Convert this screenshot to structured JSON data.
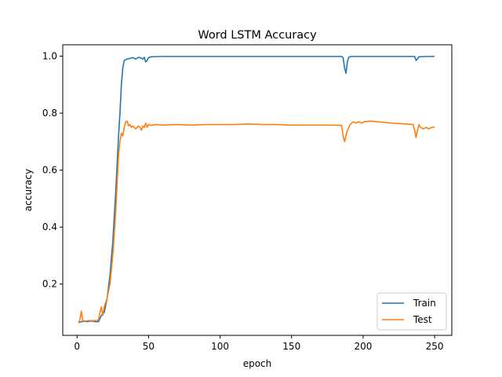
{
  "chart_data": {
    "type": "line",
    "title": "Word LSTM Accuracy",
    "xlabel": "epoch",
    "ylabel": "accuracy",
    "xlim": [
      -10,
      262
    ],
    "ylim": [
      0.02,
      1.04
    ],
    "xticks": [
      0,
      50,
      100,
      150,
      200,
      250
    ],
    "yticks": [
      0.2,
      0.4,
      0.6,
      0.8,
      1.0
    ],
    "xtick_labels": [
      "0",
      "50",
      "100",
      "150",
      "200",
      "250"
    ],
    "ytick_labels": [
      "0.2",
      "0.4",
      "0.6",
      "0.8",
      "1.0"
    ],
    "legend_position": "bottom-right",
    "grid": false,
    "series": [
      {
        "name": "Train",
        "color": "#1f77b4",
        "points": [
          [
            1,
            0.065
          ],
          [
            3,
            0.068
          ],
          [
            5,
            0.07
          ],
          [
            7,
            0.068
          ],
          [
            9,
            0.07
          ],
          [
            11,
            0.07
          ],
          [
            13,
            0.068
          ],
          [
            15,
            0.068
          ],
          [
            17,
            0.09
          ],
          [
            19,
            0.1
          ],
          [
            21,
            0.15
          ],
          [
            23,
            0.23
          ],
          [
            25,
            0.35
          ],
          [
            27,
            0.52
          ],
          [
            29,
            0.72
          ],
          [
            30,
            0.8
          ],
          [
            31,
            0.9
          ],
          [
            32,
            0.96
          ],
          [
            33,
            0.985
          ],
          [
            35,
            0.99
          ],
          [
            37,
            0.992
          ],
          [
            39,
            0.995
          ],
          [
            41,
            0.99
          ],
          [
            43,
            0.996
          ],
          [
            45,
            0.993
          ],
          [
            46,
            0.99
          ],
          [
            47,
            0.996
          ],
          [
            48,
            0.98
          ],
          [
            49,
            0.985
          ],
          [
            50,
            0.995
          ],
          [
            52,
            0.998
          ],
          [
            60,
            0.999
          ],
          [
            100,
            0.999
          ],
          [
            150,
            0.999
          ],
          [
            185,
            0.999
          ],
          [
            186,
            0.995
          ],
          [
            187,
            0.96
          ],
          [
            188,
            0.94
          ],
          [
            189,
            0.98
          ],
          [
            190,
            0.997
          ],
          [
            192,
            0.999
          ],
          [
            230,
            0.999
          ],
          [
            236,
            0.999
          ],
          [
            237,
            0.985
          ],
          [
            238,
            0.99
          ],
          [
            239,
            0.998
          ],
          [
            245,
            0.999
          ],
          [
            250,
            0.999
          ]
        ]
      },
      {
        "name": "Test",
        "color": "#ff7f0e",
        "points": [
          [
            1,
            0.065
          ],
          [
            2,
            0.075
          ],
          [
            3,
            0.105
          ],
          [
            4,
            0.072
          ],
          [
            6,
            0.07
          ],
          [
            8,
            0.072
          ],
          [
            10,
            0.072
          ],
          [
            12,
            0.072
          ],
          [
            14,
            0.072
          ],
          [
            15,
            0.075
          ],
          [
            16,
            0.1
          ],
          [
            17,
            0.12
          ],
          [
            18,
            0.09
          ],
          [
            19,
            0.12
          ],
          [
            21,
            0.15
          ],
          [
            23,
            0.2
          ],
          [
            25,
            0.3
          ],
          [
            27,
            0.45
          ],
          [
            28,
            0.55
          ],
          [
            29,
            0.65
          ],
          [
            30,
            0.7
          ],
          [
            31,
            0.73
          ],
          [
            32,
            0.72
          ],
          [
            33,
            0.75
          ],
          [
            34,
            0.77
          ],
          [
            35,
            0.772
          ],
          [
            36,
            0.755
          ],
          [
            37,
            0.76
          ],
          [
            38,
            0.75
          ],
          [
            39,
            0.755
          ],
          [
            41,
            0.745
          ],
          [
            43,
            0.755
          ],
          [
            44,
            0.75
          ],
          [
            45,
            0.74
          ],
          [
            46,
            0.755
          ],
          [
            47,
            0.75
          ],
          [
            48,
            0.765
          ],
          [
            49,
            0.75
          ],
          [
            50,
            0.76
          ],
          [
            52,
            0.757
          ],
          [
            55,
            0.76
          ],
          [
            60,
            0.758
          ],
          [
            70,
            0.76
          ],
          [
            80,
            0.758
          ],
          [
            90,
            0.76
          ],
          [
            100,
            0.76
          ],
          [
            110,
            0.76
          ],
          [
            120,
            0.762
          ],
          [
            130,
            0.76
          ],
          [
            140,
            0.76
          ],
          [
            150,
            0.758
          ],
          [
            160,
            0.758
          ],
          [
            170,
            0.758
          ],
          [
            180,
            0.758
          ],
          [
            185,
            0.757
          ],
          [
            186,
            0.72
          ],
          [
            187,
            0.7
          ],
          [
            188,
            0.72
          ],
          [
            189,
            0.74
          ],
          [
            191,
            0.76
          ],
          [
            193,
            0.77
          ],
          [
            195,
            0.765
          ],
          [
            197,
            0.77
          ],
          [
            199,
            0.765
          ],
          [
            201,
            0.77
          ],
          [
            205,
            0.772
          ],
          [
            210,
            0.77
          ],
          [
            220,
            0.765
          ],
          [
            230,
            0.762
          ],
          [
            235,
            0.76
          ],
          [
            236,
            0.74
          ],
          [
            237,
            0.715
          ],
          [
            238,
            0.74
          ],
          [
            239,
            0.76
          ],
          [
            240,
            0.75
          ],
          [
            242,
            0.745
          ],
          [
            244,
            0.75
          ],
          [
            246,
            0.745
          ],
          [
            248,
            0.75
          ],
          [
            250,
            0.75
          ]
        ]
      }
    ]
  }
}
